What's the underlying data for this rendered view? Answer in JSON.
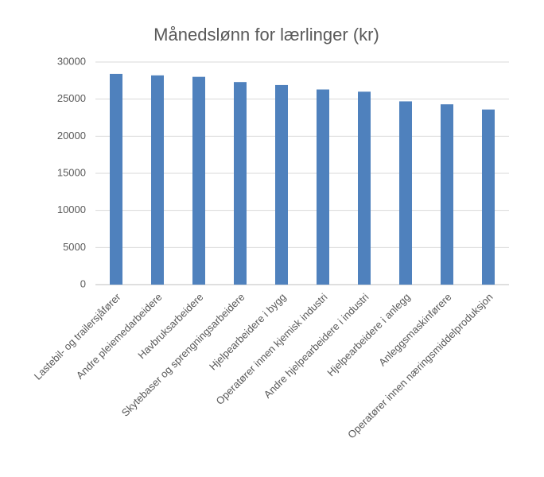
{
  "chart_data": {
    "type": "bar",
    "title": "Månedslønn for lærlinger (kr)",
    "categories": [
      "Lastebil- og trailersjåfører",
      "Andre pleiemedarbeidere",
      "Havbruksarbeidere",
      "Skytebaser og sprengningsarbeidere",
      "Hjelpearbeidere i bygg",
      "Operatører innen kjemisk industri",
      "Andre hjelpearbeidere i industri",
      "Hjelpearbeidere i anlegg",
      "Anleggsmaskinførere",
      "Operatører innen næringsmiddelproduksjon"
    ],
    "values": [
      28400,
      28200,
      28000,
      27300,
      26900,
      26300,
      26000,
      24700,
      24300,
      23600
    ],
    "color": "#4f81bd",
    "ylim": [
      0,
      30000
    ],
    "yticks": [
      0,
      5000,
      10000,
      15000,
      20000,
      25000,
      30000
    ],
    "grid": true
  }
}
